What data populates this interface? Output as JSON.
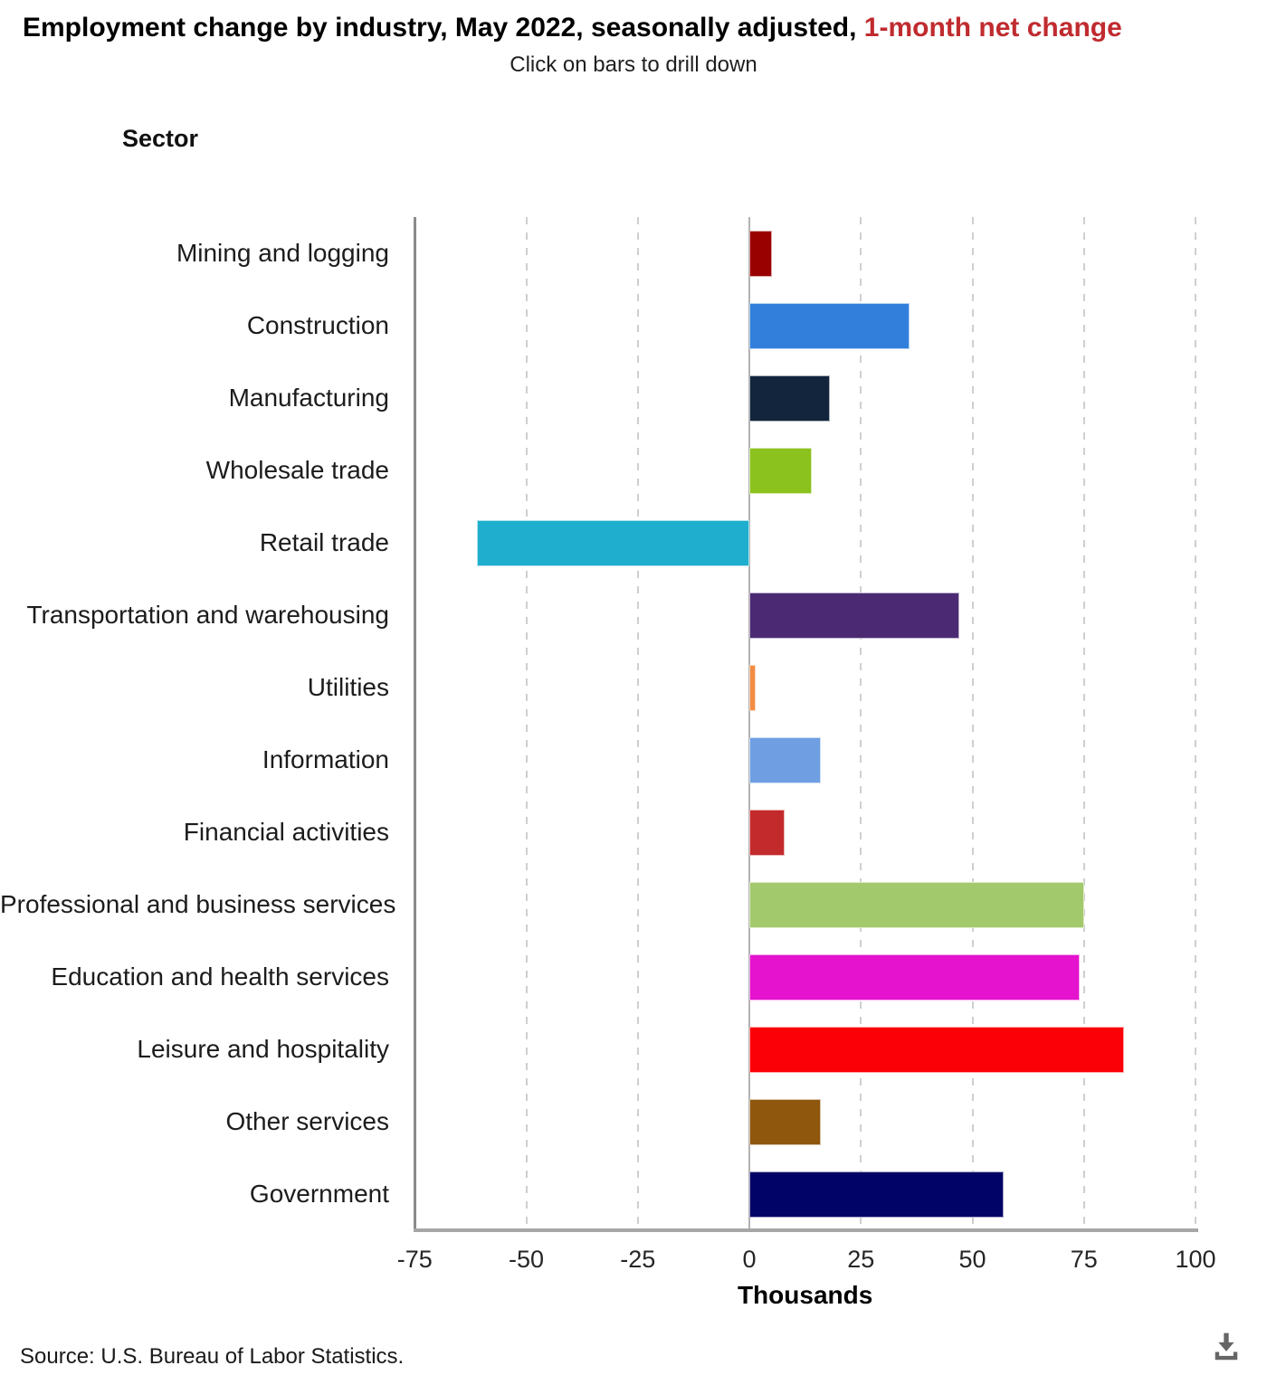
{
  "header": {
    "title_black": "Employment change by industry, May 2022, seasonally adjusted, ",
    "title_red": "1-month net change",
    "title_red_color": "#c02b2f",
    "subtitle": "Click on bars to drill down"
  },
  "chart_data": {
    "type": "bar",
    "orientation": "horizontal",
    "title": "Employment change by industry, May 2022, seasonally adjusted, 1-month net change",
    "subtitle": "Click on bars to drill down",
    "ylabel": "Sector",
    "xlabel": "Thousands",
    "units": "thousands",
    "xlim": [
      -75,
      100
    ],
    "xticks": [
      -75,
      -50,
      -25,
      0,
      25,
      50,
      75,
      100
    ],
    "xtick_labels": [
      "-75",
      "-50",
      "-25",
      "0",
      "25",
      "50",
      "75",
      "100"
    ],
    "grid": "vertical-dashed",
    "legend": "none",
    "categories": [
      "Mining and logging",
      "Construction",
      "Manufacturing",
      "Wholesale trade",
      "Retail trade",
      "Transportation and warehousing",
      "Utilities",
      "Information",
      "Financial activities",
      "Professional and business services",
      "Education and health services",
      "Leisure and hospitality",
      "Other services",
      "Government"
    ],
    "values": [
      5,
      36,
      18,
      14,
      -61,
      47,
      1.5,
      16,
      8,
      75,
      74,
      84,
      16,
      57
    ],
    "colors": [
      "#990000",
      "#317fdb",
      "#13253c",
      "#8bc21d",
      "#1faecd",
      "#4b2a73",
      "#f18c43",
      "#6f9fe2",
      "#c32a2c",
      "#a3c96d",
      "#e512ce",
      "#fb0007",
      "#8f560e",
      "#020366"
    ]
  },
  "footer": {
    "source": "Source: U.S. Bureau of Labor Statistics.",
    "download_icon": "download-icon"
  }
}
